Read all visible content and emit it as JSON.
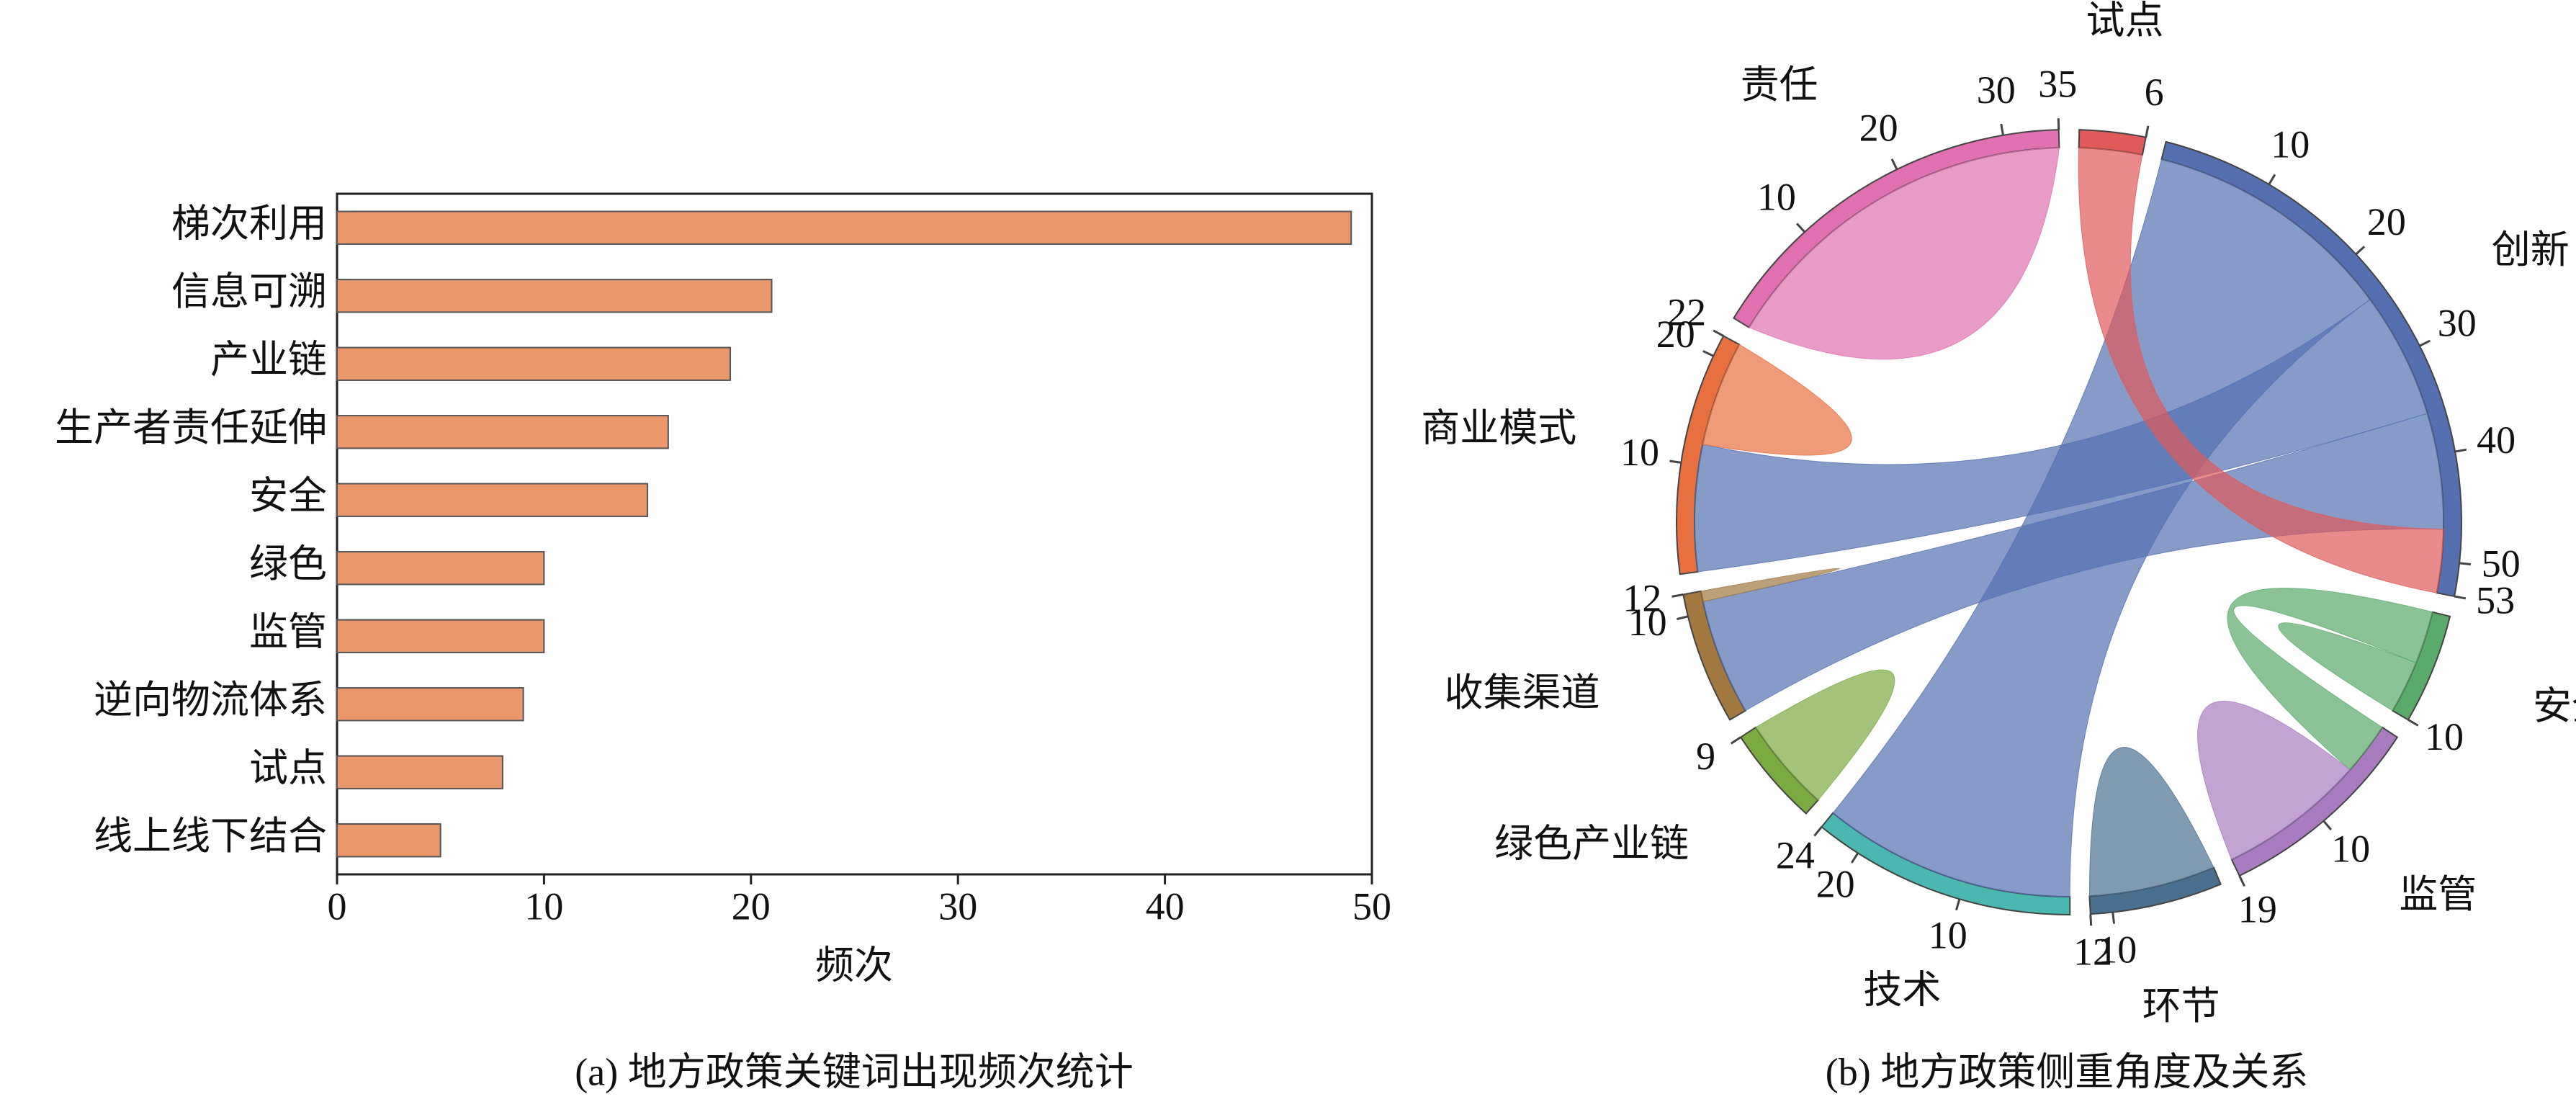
{
  "chart_data": [
    {
      "type": "barh",
      "categories": [
        "梯次利用",
        "信息可溯",
        "产业链",
        "生产者责任延伸",
        "安全",
        "绿色",
        "监管",
        "逆向物流体系",
        "试点",
        "线上线下结合"
      ],
      "values": [
        49,
        21,
        19,
        16,
        15,
        10,
        10,
        9,
        8,
        5
      ],
      "color": "#e9976b",
      "xlim": [
        0,
        50
      ],
      "xticks": [
        0,
        10,
        20,
        30,
        40,
        50
      ],
      "xlabel": "频次",
      "caption": "(a) 地方政策关键词出现频次统计"
    },
    {
      "type": "chord",
      "caption": "(b) 地方政策侧重角度及关系",
      "groups": [
        {
          "name": "试点",
          "value": 6,
          "color": "#e05a5a",
          "ticks": []
        },
        {
          "name": "创新",
          "value": 53,
          "color": "#5470b0",
          "ticks": [
            10,
            20,
            30,
            40,
            50
          ]
        },
        {
          "name": "安全",
          "value": 10,
          "color": "#5aaa6a",
          "ticks": []
        },
        {
          "name": "监管",
          "value": 19,
          "color": "#a97cc0",
          "ticks": [
            10
          ]
        },
        {
          "name": "环节",
          "value": 12,
          "color": "#4a7090",
          "ticks": [
            10
          ]
        },
        {
          "name": "技术",
          "value": 24,
          "color": "#4ab8b0",
          "ticks": [
            10,
            20
          ]
        },
        {
          "name": "绿色产业链",
          "value": 9,
          "color": "#7aaa40",
          "ticks": []
        },
        {
          "name": "收集渠道",
          "value": 12,
          "color": "#a07840",
          "ticks": [
            10
          ]
        },
        {
          "name": "商业模式",
          "value": 22,
          "color": "#e87040",
          "ticks": [
            10,
            20
          ]
        },
        {
          "name": "责任",
          "value": 35,
          "color": "#e070b0",
          "ticks": [
            10,
            20,
            30
          ]
        }
      ],
      "links": [
        {
          "source": "创新",
          "target": "技术",
          "value": 24
        },
        {
          "source": "创新",
          "target": "商业模式",
          "value": 12
        },
        {
          "source": "创新",
          "target": "收集渠道",
          "value": 11
        },
        {
          "source": "试点",
          "target": "创新",
          "value": 6
        },
        {
          "source": "商业模式",
          "target": "商业模式",
          "value": 10
        },
        {
          "source": "收集渠道",
          "target": "收集渠道",
          "value": 1
        },
        {
          "source": "责任",
          "target": "责任",
          "value": 35
        },
        {
          "source": "绿色产业链",
          "target": "绿色产业链",
          "value": 9
        },
        {
          "source": "安全",
          "target": "监管",
          "value": 5
        },
        {
          "source": "安全",
          "target": "安全",
          "value": 5
        },
        {
          "source": "监管",
          "target": "监管",
          "value": 14
        },
        {
          "source": "环节",
          "target": "环节",
          "value": 12
        }
      ]
    }
  ]
}
